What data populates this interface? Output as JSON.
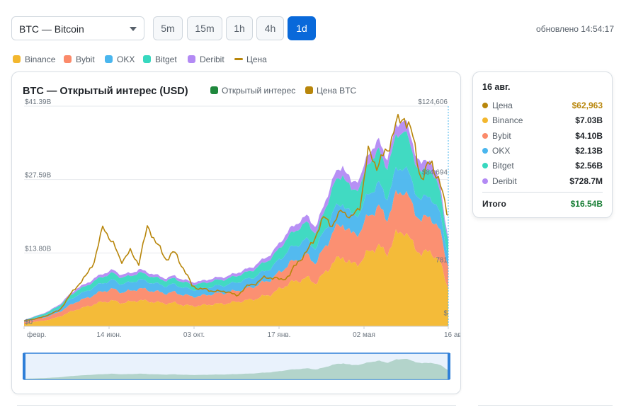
{
  "asset_select": {
    "label": "BTC — Bitcoin"
  },
  "timeframes": [
    {
      "label": "5m",
      "active": false
    },
    {
      "label": "15m",
      "active": false
    },
    {
      "label": "1h",
      "active": false
    },
    {
      "label": "4h",
      "active": false
    },
    {
      "label": "1d",
      "active": true
    }
  ],
  "updated": "обновлено 14:54:17",
  "colors": {
    "binance": "#f3b72e",
    "bybit": "#fb8a6a",
    "okx": "#4ab6ee",
    "bitget": "#37d8bf",
    "deribit": "#b38af4",
    "price": "#b8860b",
    "oi_legend": "#1f883d",
    "accent": "#0969da"
  },
  "top_legend": [
    {
      "label": "Binance",
      "kind": "box",
      "color": "#f3b72e"
    },
    {
      "label": "Bybit",
      "kind": "box",
      "color": "#fb8a6a"
    },
    {
      "label": "OKX",
      "kind": "box",
      "color": "#4ab6ee"
    },
    {
      "label": "Bitget",
      "kind": "box",
      "color": "#37d8bf"
    },
    {
      "label": "Deribit",
      "kind": "box",
      "color": "#b38af4"
    },
    {
      "label": "Цена",
      "kind": "line",
      "color": "#b8860b"
    }
  ],
  "chart_data": {
    "type": "area",
    "stacked": true,
    "title": "BTC — Открытый интерес (USD)",
    "legend": [
      {
        "label": "Открытый интерес",
        "color": "#1f883d"
      },
      {
        "label": "Цена BTC",
        "color": "#b8860b"
      }
    ],
    "x_ticks": [
      "февр.",
      "14 июн.",
      "03 окт.",
      "17 янв.",
      "02 мая",
      "16 авг."
    ],
    "y_left_ticks": [
      "$41.39B",
      "$27.59B",
      "$13.80B",
      "$0"
    ],
    "y_left_range": [
      0,
      41.39
    ],
    "y_right_ticks": [
      "$124,606",
      "$84,694",
      "781",
      "$"
    ],
    "y_right_range": [
      0,
      124606
    ],
    "grid": true,
    "x_index": [
      0,
      12,
      25,
      37,
      50,
      62,
      75,
      87,
      100,
      112,
      125,
      137,
      150,
      162,
      175,
      187,
      200,
      212,
      225,
      237,
      250,
      262,
      275,
      287,
      300,
      312,
      325,
      337,
      350,
      362,
      375,
      387,
      400,
      412,
      425,
      437,
      450,
      462,
      475,
      487,
      500,
      512,
      525,
      537,
      550,
      562,
      575,
      587,
      599
    ],
    "series": [
      {
        "name": "Binance",
        "values": [
          0.5,
          0.8,
          1.0,
          1.3,
          1.8,
          2.5,
          3.2,
          3.6,
          4.2,
          4.6,
          4.8,
          4.4,
          4.6,
          4.9,
          4.7,
          4.5,
          4.3,
          4.4,
          4.0,
          3.8,
          3.9,
          4.1,
          4.2,
          4.3,
          4.6,
          4.8,
          5.1,
          5.6,
          6.1,
          7.1,
          8.1,
          8.6,
          9.1,
          8.1,
          10.1,
          12.1,
          13.1,
          11.6,
          12.1,
          14.1,
          15.1,
          13.6,
          17.1,
          18.1,
          15.1,
          13.6,
          14.1,
          12.1,
          7.03
        ]
      },
      {
        "name": "Bybit",
        "values": [
          0.3,
          0.4,
          0.5,
          0.7,
          0.9,
          1.2,
          1.5,
          1.6,
          1.8,
          2.0,
          2.2,
          2.0,
          2.0,
          2.2,
          2.1,
          2.0,
          1.9,
          2.0,
          1.9,
          1.8,
          1.8,
          1.9,
          2.0,
          2.0,
          2.1,
          2.2,
          2.4,
          2.6,
          2.8,
          3.2,
          3.7,
          4.0,
          4.2,
          3.8,
          4.8,
          5.8,
          6.3,
          5.6,
          5.8,
          6.8,
          7.3,
          6.6,
          7.3,
          7.8,
          6.8,
          6.3,
          6.6,
          5.8,
          4.1
        ]
      },
      {
        "name": "OKX",
        "values": [
          0.2,
          0.3,
          0.4,
          0.5,
          0.7,
          1.0,
          1.2,
          1.3,
          1.5,
          1.6,
          1.7,
          1.6,
          1.6,
          1.7,
          1.6,
          1.5,
          1.4,
          1.5,
          1.4,
          1.3,
          1.3,
          1.4,
          1.4,
          1.5,
          1.6,
          1.7,
          1.8,
          2.0,
          2.2,
          2.4,
          2.7,
          2.9,
          3.0,
          2.7,
          3.3,
          3.8,
          4.0,
          3.6,
          3.7,
          4.2,
          4.4,
          4.0,
          4.5,
          4.7,
          4.1,
          3.8,
          3.9,
          3.3,
          2.13
        ]
      },
      {
        "name": "Bitget",
        "values": [
          0.1,
          0.2,
          0.3,
          0.4,
          0.5,
          0.7,
          0.9,
          1.0,
          1.1,
          1.2,
          1.3,
          1.2,
          1.2,
          1.3,
          1.2,
          1.1,
          1.0,
          1.1,
          1.0,
          1.0,
          1.0,
          1.0,
          1.1,
          1.1,
          1.2,
          1.3,
          1.4,
          1.6,
          1.8,
          2.2,
          2.6,
          2.9,
          3.2,
          2.8,
          3.8,
          4.8,
          5.3,
          4.6,
          4.9,
          5.8,
          6.3,
          5.6,
          6.3,
          6.8,
          5.6,
          5.1,
          5.2,
          4.2,
          2.56
        ]
      },
      {
        "name": "Deribit",
        "values": [
          0.05,
          0.08,
          0.1,
          0.15,
          0.2,
          0.3,
          0.4,
          0.45,
          0.5,
          0.55,
          0.6,
          0.55,
          0.55,
          0.6,
          0.55,
          0.5,
          0.45,
          0.5,
          0.45,
          0.45,
          0.45,
          0.5,
          0.5,
          0.5,
          0.55,
          0.6,
          0.65,
          0.75,
          0.85,
          1.0,
          1.1,
          1.2,
          1.3,
          1.2,
          1.4,
          1.6,
          1.7,
          1.5,
          1.6,
          1.8,
          1.9,
          1.7,
          2.0,
          2.1,
          1.8,
          1.6,
          1.6,
          1.3,
          0.73
        ]
      }
    ],
    "price_series": {
      "name": "Цена BTC",
      "values": [
        3000,
        4000,
        5000,
        7000,
        9000,
        16000,
        23000,
        28000,
        38000,
        57000,
        47000,
        37000,
        42000,
        36000,
        57000,
        47000,
        38000,
        42000,
        33000,
        23000,
        21000,
        20500,
        19500,
        20000,
        17000,
        22000,
        24000,
        27000,
        28000,
        26000,
        29000,
        37000,
        42000,
        52000,
        62000,
        57000,
        67000,
        60000,
        70000,
        100000,
        90000,
        100000,
        113000,
        120000,
        105000,
        82000,
        95000,
        80000,
        62963
      ]
    },
    "tooltip": {
      "date": "16 авг.",
      "rows": [
        {
          "name": "Цена",
          "value": "$62,963",
          "color": "#b8860b",
          "value_color": "#b8860b"
        },
        {
          "name": "Binance",
          "value": "$7.03B",
          "color": "#f3b72e",
          "value_color": "#1f2328"
        },
        {
          "name": "Bybit",
          "value": "$4.10B",
          "color": "#fb8a6a",
          "value_color": "#1f2328"
        },
        {
          "name": "OKX",
          "value": "$2.13B",
          "color": "#4ab6ee",
          "value_color": "#1f2328"
        },
        {
          "name": "Bitget",
          "value": "$2.56B",
          "color": "#37d8bf",
          "value_color": "#1f2328"
        },
        {
          "name": "Deribit",
          "value": "$728.7M",
          "color": "#b38af4",
          "value_color": "#1f2328"
        }
      ],
      "total_label": "Итого",
      "total_value": "$16.54B"
    }
  }
}
